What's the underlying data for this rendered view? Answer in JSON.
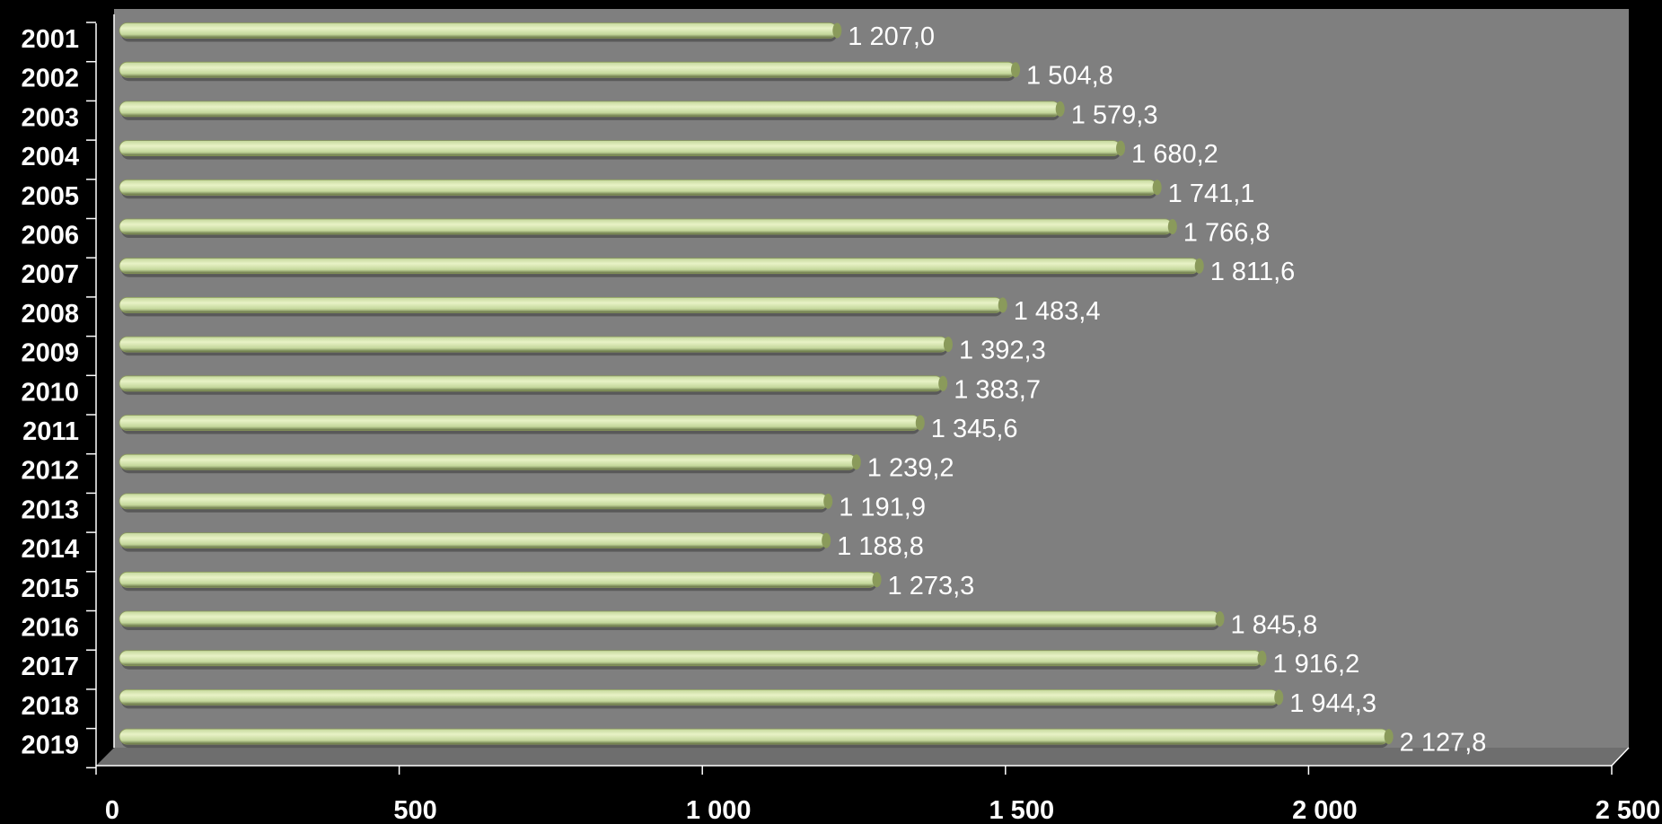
{
  "chart_data": {
    "type": "bar",
    "orientation": "horizontal",
    "categories": [
      "2001",
      "2002",
      "2003",
      "2004",
      "2005",
      "2006",
      "2007",
      "2008",
      "2009",
      "2010",
      "2011",
      "2012",
      "2013",
      "2014",
      "2015",
      "2016",
      "2017",
      "2018",
      "2019"
    ],
    "values": [
      1207.0,
      1504.8,
      1579.3,
      1680.2,
      1741.1,
      1766.8,
      1811.6,
      1483.4,
      1392.3,
      1383.7,
      1345.6,
      1239.2,
      1191.9,
      1188.8,
      1273.3,
      1845.8,
      1916.2,
      1944.3,
      2127.8
    ],
    "data_labels": [
      "1 207,0",
      "1 504,8",
      "1 579,3",
      "1 680,2",
      "1 741,1",
      "1 766,8",
      "1 811,6",
      "1 483,4",
      "1 392,3",
      "1 383,7",
      "1 345,6",
      "1 239,2",
      "1 191,9",
      "1 188,8",
      "1 273,3",
      "1 845,8",
      "1 916,2",
      "1 944,3",
      "2 127,8"
    ],
    "x_ticks": [
      0,
      500,
      1000,
      1500,
      2000,
      2500
    ],
    "x_tick_labels": [
      "0",
      "500",
      "1 000",
      "1 500",
      "2 000",
      "2 500"
    ],
    "xlim": [
      0,
      2500
    ],
    "title": "",
    "xlabel": "",
    "ylabel": "",
    "grid": false,
    "legend": "none",
    "colors": {
      "background": "#000000",
      "plot_area": "#7f7f7f",
      "bar_fill": "#c4d79b",
      "bar_highlight": "#e8f2c6",
      "bar_shadow": "#5e6b3e",
      "text": "#ffffff",
      "axis": "#ffffff"
    }
  }
}
